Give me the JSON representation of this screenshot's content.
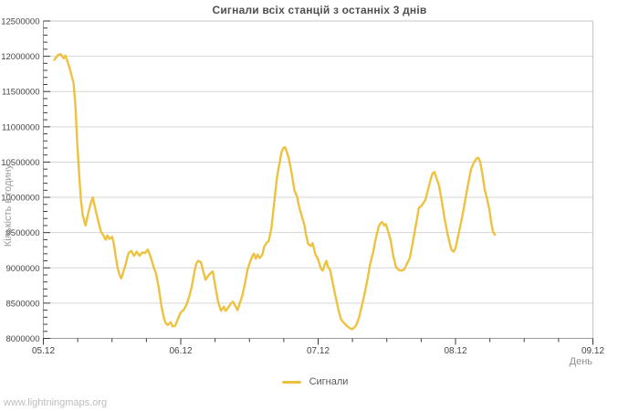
{
  "chart": {
    "title": "Сигнали всіх станцій з останніх 3 днів",
    "x_axis": {
      "title": "День",
      "tick_labels": [
        "05.12",
        "06.12",
        "07.12",
        "08.12",
        "09.12"
      ],
      "minor_ticks_per_interval": 3
    },
    "y_axis": {
      "title": "Кількість в годину",
      "tick_labels": [
        "8000000",
        "8500000",
        "9000000",
        "9500000",
        "10000000",
        "10500000",
        "11000000",
        "11500000",
        "12000000",
        "12500000"
      ],
      "major_step": 500000,
      "minor_step": 100000
    },
    "legend": [
      {
        "label": "Сигнали",
        "color": "#edc240"
      }
    ]
  },
  "watermark": "www.lightningmaps.org",
  "colors": {
    "line": "#edc240",
    "grid": "#d6d6d6",
    "border": "#c4c4c4",
    "axis_line": "#9a9a9a",
    "tick": "#3a3a3a",
    "tick_label": "#464646",
    "title": "#4f4f4f",
    "axis_title": "#8f8f8f",
    "legend_text": "#5a5a5a",
    "watermark": "#bdbdbd"
  },
  "chart_data": {
    "type": "line",
    "title": "Сигнали всіх станцій з останніх 3 днів",
    "xlabel": "День",
    "ylabel": "Кількість в годину",
    "x_unit": "days since 05.12 00:00",
    "y_unit": "signals per hour (values in millions)",
    "x_range": [
      0,
      4
    ],
    "y_range": [
      8000000,
      12500000
    ],
    "grid": "horizontal-only",
    "legend_position": "bottom-center",
    "series": [
      {
        "name": "Сигнали",
        "color": "#edc240",
        "points": [
          [
            0.08,
            11.95
          ],
          [
            0.107,
            12.02
          ],
          [
            0.127,
            12.03
          ],
          [
            0.147,
            11.97
          ],
          [
            0.16,
            12.01
          ],
          [
            0.18,
            11.9
          ],
          [
            0.2,
            11.77
          ],
          [
            0.22,
            11.62
          ],
          [
            0.233,
            11.3
          ],
          [
            0.247,
            10.75
          ],
          [
            0.26,
            10.35
          ],
          [
            0.273,
            9.97
          ],
          [
            0.287,
            9.74
          ],
          [
            0.307,
            9.6
          ],
          [
            0.327,
            9.78
          ],
          [
            0.347,
            9.93
          ],
          [
            0.36,
            10.0
          ],
          [
            0.38,
            9.82
          ],
          [
            0.4,
            9.66
          ],
          [
            0.42,
            9.51
          ],
          [
            0.44,
            9.45
          ],
          [
            0.453,
            9.4
          ],
          [
            0.467,
            9.46
          ],
          [
            0.48,
            9.41
          ],
          [
            0.5,
            9.44
          ],
          [
            0.513,
            9.34
          ],
          [
            0.527,
            9.16
          ],
          [
            0.54,
            9.0
          ],
          [
            0.553,
            8.91
          ],
          [
            0.567,
            8.85
          ],
          [
            0.58,
            8.93
          ],
          [
            0.6,
            9.06
          ],
          [
            0.62,
            9.21
          ],
          [
            0.64,
            9.24
          ],
          [
            0.66,
            9.17
          ],
          [
            0.68,
            9.23
          ],
          [
            0.7,
            9.17
          ],
          [
            0.72,
            9.22
          ],
          [
            0.74,
            9.21
          ],
          [
            0.76,
            9.26
          ],
          [
            0.78,
            9.16
          ],
          [
            0.8,
            9.03
          ],
          [
            0.82,
            8.92
          ],
          [
            0.84,
            8.72
          ],
          [
            0.86,
            8.45
          ],
          [
            0.88,
            8.27
          ],
          [
            0.893,
            8.21
          ],
          [
            0.907,
            8.19
          ],
          [
            0.927,
            8.23
          ],
          [
            0.94,
            8.17
          ],
          [
            0.96,
            8.18
          ],
          [
            0.98,
            8.28
          ],
          [
            1.0,
            8.37
          ],
          [
            1.02,
            8.4
          ],
          [
            1.04,
            8.47
          ],
          [
            1.06,
            8.58
          ],
          [
            1.08,
            8.73
          ],
          [
            1.1,
            8.95
          ],
          [
            1.113,
            9.06
          ],
          [
            1.127,
            9.1
          ],
          [
            1.147,
            9.08
          ],
          [
            1.16,
            8.98
          ],
          [
            1.18,
            8.83
          ],
          [
            1.2,
            8.89
          ],
          [
            1.22,
            8.93
          ],
          [
            1.233,
            8.95
          ],
          [
            1.253,
            8.72
          ],
          [
            1.273,
            8.51
          ],
          [
            1.293,
            8.39
          ],
          [
            1.313,
            8.45
          ],
          [
            1.327,
            8.39
          ],
          [
            1.347,
            8.44
          ],
          [
            1.367,
            8.5
          ],
          [
            1.38,
            8.52
          ],
          [
            1.4,
            8.45
          ],
          [
            1.413,
            8.4
          ],
          [
            1.433,
            8.52
          ],
          [
            1.447,
            8.6
          ],
          [
            1.467,
            8.78
          ],
          [
            1.487,
            8.98
          ],
          [
            1.507,
            9.1
          ],
          [
            1.52,
            9.16
          ],
          [
            1.533,
            9.2
          ],
          [
            1.547,
            9.13
          ],
          [
            1.56,
            9.19
          ],
          [
            1.573,
            9.14
          ],
          [
            1.593,
            9.18
          ],
          [
            1.607,
            9.3
          ],
          [
            1.627,
            9.36
          ],
          [
            1.64,
            9.38
          ],
          [
            1.66,
            9.56
          ],
          [
            1.68,
            9.92
          ],
          [
            1.7,
            10.28
          ],
          [
            1.72,
            10.5
          ],
          [
            1.733,
            10.64
          ],
          [
            1.747,
            10.7
          ],
          [
            1.76,
            10.71
          ],
          [
            1.773,
            10.64
          ],
          [
            1.787,
            10.55
          ],
          [
            1.807,
            10.34
          ],
          [
            1.827,
            10.1
          ],
          [
            1.847,
            10.01
          ],
          [
            1.86,
            9.88
          ],
          [
            1.88,
            9.74
          ],
          [
            1.9,
            9.61
          ],
          [
            1.913,
            9.46
          ],
          [
            1.927,
            9.34
          ],
          [
            1.947,
            9.31
          ],
          [
            1.96,
            9.35
          ],
          [
            1.98,
            9.19
          ],
          [
            2.0,
            9.12
          ],
          [
            2.02,
            8.99
          ],
          [
            2.033,
            8.96
          ],
          [
            2.047,
            9.04
          ],
          [
            2.06,
            9.1
          ],
          [
            2.073,
            9.01
          ],
          [
            2.087,
            8.97
          ],
          [
            2.107,
            8.78
          ],
          [
            2.127,
            8.59
          ],
          [
            2.147,
            8.41
          ],
          [
            2.167,
            8.27
          ],
          [
            2.187,
            8.22
          ],
          [
            2.207,
            8.18
          ],
          [
            2.227,
            8.15
          ],
          [
            2.247,
            8.13
          ],
          [
            2.267,
            8.16
          ],
          [
            2.28,
            8.2
          ],
          [
            2.3,
            8.31
          ],
          [
            2.32,
            8.48
          ],
          [
            2.34,
            8.65
          ],
          [
            2.36,
            8.85
          ],
          [
            2.38,
            9.07
          ],
          [
            2.4,
            9.22
          ],
          [
            2.42,
            9.42
          ],
          [
            2.44,
            9.58
          ],
          [
            2.453,
            9.63
          ],
          [
            2.467,
            9.65
          ],
          [
            2.48,
            9.6
          ],
          [
            2.493,
            9.62
          ],
          [
            2.507,
            9.53
          ],
          [
            2.527,
            9.4
          ],
          [
            2.547,
            9.17
          ],
          [
            2.567,
            9.01
          ],
          [
            2.587,
            8.97
          ],
          [
            2.607,
            8.96
          ],
          [
            2.627,
            8.98
          ],
          [
            2.647,
            9.06
          ],
          [
            2.667,
            9.14
          ],
          [
            2.687,
            9.34
          ],
          [
            2.707,
            9.56
          ],
          [
            2.72,
            9.7
          ],
          [
            2.733,
            9.85
          ],
          [
            2.753,
            9.88
          ],
          [
            2.767,
            9.92
          ],
          [
            2.78,
            9.96
          ],
          [
            2.8,
            10.11
          ],
          [
            2.82,
            10.26
          ],
          [
            2.833,
            10.34
          ],
          [
            2.847,
            10.36
          ],
          [
            2.86,
            10.28
          ],
          [
            2.88,
            10.17
          ],
          [
            2.9,
            9.95
          ],
          [
            2.92,
            9.7
          ],
          [
            2.94,
            9.5
          ],
          [
            2.96,
            9.33
          ],
          [
            2.973,
            9.25
          ],
          [
            2.987,
            9.23
          ],
          [
            3.0,
            9.28
          ],
          [
            3.013,
            9.4
          ],
          [
            3.033,
            9.58
          ],
          [
            3.053,
            9.77
          ],
          [
            3.073,
            9.99
          ],
          [
            3.093,
            10.2
          ],
          [
            3.113,
            10.4
          ],
          [
            3.133,
            10.49
          ],
          [
            3.153,
            10.55
          ],
          [
            3.167,
            10.56
          ],
          [
            3.18,
            10.5
          ],
          [
            3.193,
            10.36
          ],
          [
            3.213,
            10.1
          ],
          [
            3.227,
            10.0
          ],
          [
            3.247,
            9.82
          ],
          [
            3.26,
            9.64
          ],
          [
            3.273,
            9.51
          ],
          [
            3.287,
            9.47
          ]
        ]
      }
    ]
  }
}
